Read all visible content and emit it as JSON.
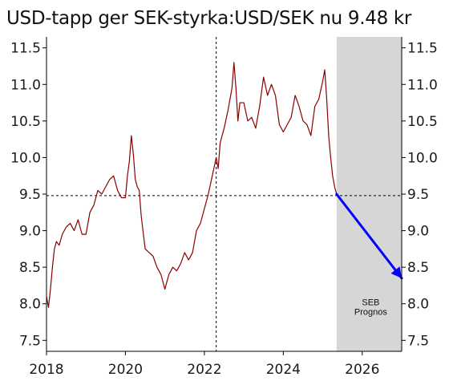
{
  "title": "USD-tapp ger SEK-styrka:USD/SEK nu 9.48 kr",
  "chart_data": {
    "type": "line",
    "title": "USD-tapp ger SEK-styrka:USD/SEK nu 9.48 kr",
    "xlabel": "",
    "ylabel": "",
    "xlim": [
      2018.0,
      2027.0
    ],
    "ylim": [
      7.35,
      11.65
    ],
    "x_ticks": [
      2018,
      2020,
      2022,
      2024,
      2026
    ],
    "x_tick_labels": [
      "2018",
      "2020",
      "2022",
      "2024",
      "2026"
    ],
    "y_ticks": [
      7.5,
      8.0,
      8.5,
      9.0,
      9.5,
      10.0,
      10.5,
      11.0,
      11.5
    ],
    "y_tick_labels": [
      "7.5",
      "8.0",
      "8.5",
      "9.0",
      "9.5",
      "10.0",
      "10.5",
      "11.0",
      "11.5"
    ],
    "grid": false,
    "series": [
      {
        "color": "#8b0000",
        "x": [
          2018.0,
          2018.05,
          2018.1,
          2018.15,
          2018.2,
          2018.25,
          2018.32,
          2018.4,
          2018.5,
          2018.6,
          2018.7,
          2018.8,
          2018.9,
          2019.0,
          2019.1,
          2019.2,
          2019.3,
          2019.4,
          2019.5,
          2019.6,
          2019.7,
          2019.8,
          2019.9,
          2020.0,
          2020.05,
          2020.1,
          2020.15,
          2020.2,
          2020.25,
          2020.3,
          2020.35,
          2020.4,
          2020.5,
          2020.6,
          2020.7,
          2020.8,
          2020.9,
          2021.0,
          2021.1,
          2021.2,
          2021.3,
          2021.4,
          2021.5,
          2021.6,
          2021.7,
          2021.8,
          2021.9,
          2022.0,
          2022.1,
          2022.2,
          2022.3,
          2022.35,
          2022.4,
          2022.5,
          2022.6,
          2022.7,
          2022.75,
          2022.8,
          2022.85,
          2022.9,
          2023.0,
          2023.1,
          2023.2,
          2023.3,
          2023.4,
          2023.5,
          2023.6,
          2023.7,
          2023.8,
          2023.9,
          2024.0,
          2024.1,
          2024.2,
          2024.3,
          2024.4,
          2024.5,
          2024.6,
          2024.7,
          2024.8,
          2024.9,
          2025.0,
          2025.05,
          2025.1,
          2025.15,
          2025.2,
          2025.25,
          2025.3,
          2025.35
        ],
        "values": [
          8.1,
          7.95,
          8.2,
          8.5,
          8.75,
          8.85,
          8.8,
          8.95,
          9.05,
          9.1,
          9.0,
          9.15,
          8.95,
          8.95,
          9.25,
          9.35,
          9.55,
          9.5,
          9.6,
          9.7,
          9.75,
          9.55,
          9.45,
          9.45,
          9.75,
          9.95,
          10.3,
          10.05,
          9.7,
          9.6,
          9.55,
          9.2,
          8.75,
          8.7,
          8.65,
          8.5,
          8.4,
          8.2,
          8.4,
          8.5,
          8.45,
          8.55,
          8.7,
          8.6,
          8.7,
          9.0,
          9.1,
          9.3,
          9.5,
          9.75,
          10.0,
          9.85,
          10.2,
          10.4,
          10.65,
          10.95,
          11.3,
          10.95,
          10.5,
          10.75,
          10.75,
          10.5,
          10.55,
          10.4,
          10.7,
          11.1,
          10.85,
          11.0,
          10.85,
          10.45,
          10.35,
          10.45,
          10.55,
          10.85,
          10.7,
          10.5,
          10.45,
          10.3,
          10.7,
          10.8,
          11.05,
          11.2,
          10.8,
          10.3,
          10.0,
          9.75,
          9.6,
          9.5
        ]
      },
      {
        "color": "#0000ff",
        "x": [
          2025.35,
          2027.0
        ],
        "values": [
          9.5,
          8.35
        ]
      }
    ],
    "reference_lines": {
      "vertical_x": 2022.3,
      "horizontal_y": 9.48
    },
    "shaded_region": [
      2025.35,
      2027.0
    ],
    "shaded_label_lines": [
      "SEB",
      "Prognos"
    ]
  }
}
